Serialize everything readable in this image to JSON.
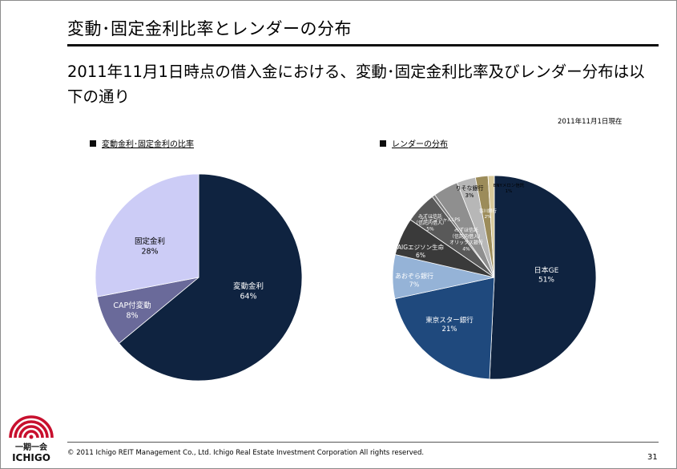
{
  "page": {
    "title": "変動･固定金利比率とレンダーの分布",
    "subtitle": "2011年11月1日時点の借入金における、変動･固定金利比率及びレンダー分布は以下の通り",
    "as_of": "2011年11月1日現在",
    "copyright": "© 2011 Ichigo REIT Management Co., Ltd.  Ichigo Real Estate Investment Corporation  All rights reserved.",
    "page_number": "31"
  },
  "logo": {
    "kanji": "一期一会",
    "name": "ICHIGO",
    "color": "#c8102e"
  },
  "chart_data": [
    {
      "type": "pie",
      "legend": "変動金利･固定金利の比率",
      "slices": [
        {
          "label": "変動金利",
          "pct_label": "64%",
          "value": 64,
          "color": "#0f2340",
          "text_color": "#ffffff"
        },
        {
          "label": "CAP付変動",
          "pct_label": "8%",
          "value": 8,
          "color": "#6a6a9a",
          "text_color": "#ffffff"
        },
        {
          "label": "固定金利",
          "pct_label": "28%",
          "value": 28,
          "color": "#ccccf6",
          "text_color": "#000000"
        }
      ]
    },
    {
      "type": "pie",
      "legend": "レンダーの分布",
      "slices": [
        {
          "label": "日本GE",
          "pct_label": "51%",
          "value": 51,
          "color": "#0f2340",
          "text_color": "#ffffff"
        },
        {
          "label": "東京スター銀行",
          "pct_label": "21%",
          "value": 21,
          "color": "#1f497d",
          "text_color": "#ffffff"
        },
        {
          "label": "あおぞら銀行",
          "pct_label": "7%",
          "value": 7,
          "color": "#95b3d7",
          "text_color": "#ffffff"
        },
        {
          "label": "AIGエジソン生命",
          "pct_label": "6%",
          "value": 6,
          "color": "#3a3a3a",
          "text_color": "#ffffff"
        },
        {
          "label": "みずほ信託\n（信託内借入）",
          "pct_label": "5%",
          "value": 5,
          "color": "#595959",
          "text_color": "#ffffff"
        },
        {
          "label": "プルデンシャルLPS",
          "pct_label": "",
          "value": 0.5,
          "color": "#7a7a7a",
          "text_color": "#ffffff"
        },
        {
          "label": "みずほ信託\n（信託内借入）\nオリックス銀行",
          "pct_label": "4%",
          "value": 4,
          "color": "#8f8f8f",
          "text_color": "#ffffff"
        },
        {
          "label": "りそな銀行",
          "pct_label": "3%",
          "value": 3,
          "color": "#b7b7b7",
          "text_color": "#000000"
        },
        {
          "label": "香川銀行",
          "pct_label": "2%",
          "value": 2,
          "color": "#9c8c5a",
          "text_color": "#ffffff"
        },
        {
          "label": "BNYメロン信託",
          "pct_label": "1%",
          "value": 1,
          "color": "#d8c99a",
          "text_color": "#000000"
        }
      ]
    }
  ]
}
